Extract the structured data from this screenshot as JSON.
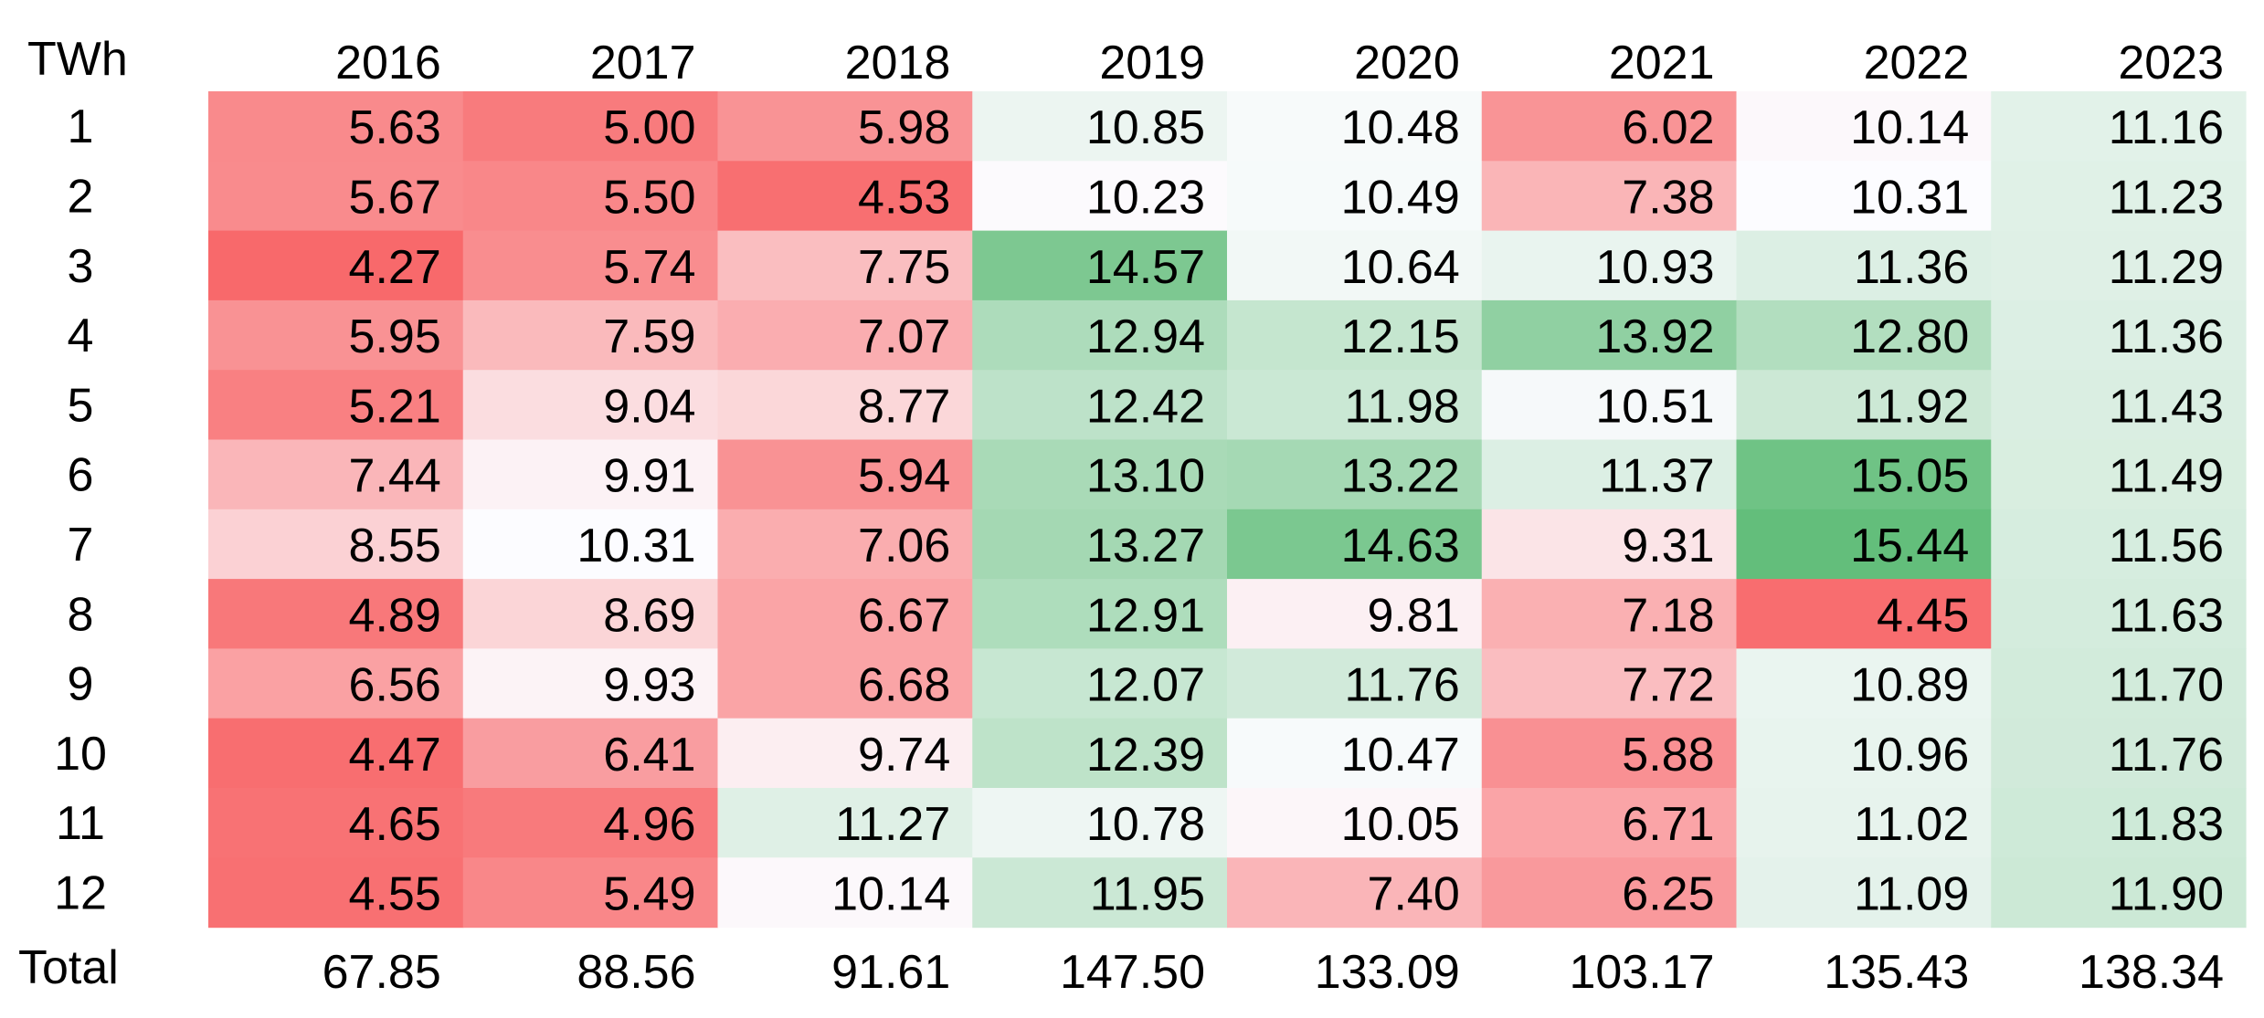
{
  "chart_data": {
    "type": "heatmap",
    "unit_label": "TWh",
    "total_label": "Total",
    "columns": [
      "2016",
      "2017",
      "2018",
      "2019",
      "2020",
      "2021",
      "2022",
      "2023"
    ],
    "rows": [
      "1",
      "2",
      "3",
      "4",
      "5",
      "6",
      "7",
      "8",
      "9",
      "10",
      "11",
      "12"
    ],
    "values": [
      [
        5.63,
        5.0,
        5.98,
        10.85,
        10.48,
        6.02,
        10.14,
        11.16
      ],
      [
        5.67,
        5.5,
        4.53,
        10.23,
        10.49,
        7.38,
        10.31,
        11.23
      ],
      [
        4.27,
        5.74,
        7.75,
        14.57,
        10.64,
        10.93,
        11.36,
        11.29
      ],
      [
        5.95,
        7.59,
        7.07,
        12.94,
        12.15,
        13.92,
        12.8,
        11.36
      ],
      [
        5.21,
        9.04,
        8.77,
        12.42,
        11.98,
        10.51,
        11.92,
        11.43
      ],
      [
        7.44,
        9.91,
        5.94,
        13.1,
        13.22,
        11.37,
        15.05,
        11.49
      ],
      [
        8.55,
        10.31,
        7.06,
        13.27,
        14.63,
        9.31,
        15.44,
        11.56
      ],
      [
        4.89,
        8.69,
        6.67,
        12.91,
        9.81,
        7.18,
        4.45,
        11.63
      ],
      [
        6.56,
        9.93,
        6.68,
        12.07,
        11.76,
        7.72,
        10.89,
        11.7
      ],
      [
        4.47,
        6.41,
        9.74,
        12.39,
        10.47,
        5.88,
        10.96,
        11.76
      ],
      [
        4.65,
        4.96,
        11.27,
        10.78,
        10.05,
        6.71,
        11.02,
        11.83
      ],
      [
        4.55,
        5.49,
        10.14,
        11.95,
        7.4,
        6.25,
        11.09,
        11.9
      ]
    ],
    "totals": [
      "67.85",
      "88.56",
      "91.61",
      "147.50",
      "133.09",
      "103.17",
      "135.43",
      "138.34"
    ],
    "color_scale": {
      "low": "#f8696b",
      "mid": "#fcfcff",
      "high": "#63be7b",
      "low_value": 4.27,
      "mid_value": 10.3,
      "high_value": 15.44
    }
  }
}
